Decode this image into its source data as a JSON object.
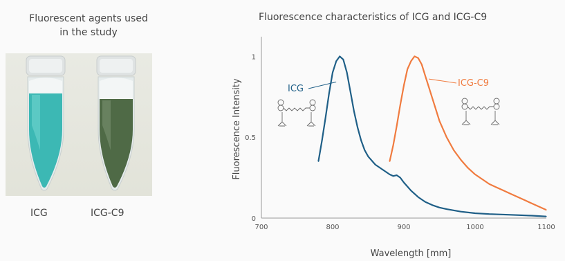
{
  "left_panel": {
    "title_line1": "Fluorescent agents used",
    "title_line2": "in the study",
    "tube_labels": [
      "ICG",
      "ICG-C9"
    ]
  },
  "chart_data": {
    "type": "line",
    "title": "Fluorescence characteristics of ICG and ICG-C9",
    "xlabel": "Wavelength [mm]",
    "ylabel": "Fluorescence Intensity",
    "xlim": [
      700,
      1100
    ],
    "ylim": [
      0,
      1.1
    ],
    "xticks": [
      "700",
      "800",
      "900",
      "1000",
      "1100"
    ],
    "yticks": [
      "0",
      "0.5",
      "1"
    ],
    "grid": false,
    "series": [
      {
        "name": "ICG",
        "color": "#1f5f87",
        "x": [
          780,
          785,
          790,
          795,
          800,
          805,
          810,
          815,
          820,
          825,
          830,
          835,
          840,
          845,
          850,
          860,
          870,
          880,
          885,
          890,
          895,
          900,
          910,
          920,
          930,
          940,
          950,
          960,
          980,
          1000,
          1020,
          1050,
          1080,
          1100
        ],
        "values": [
          0.35,
          0.48,
          0.62,
          0.77,
          0.9,
          0.97,
          1.0,
          0.98,
          0.9,
          0.78,
          0.66,
          0.56,
          0.48,
          0.42,
          0.38,
          0.33,
          0.3,
          0.27,
          0.26,
          0.265,
          0.25,
          0.22,
          0.17,
          0.13,
          0.1,
          0.08,
          0.065,
          0.055,
          0.04,
          0.03,
          0.025,
          0.02,
          0.015,
          0.01
        ]
      },
      {
        "name": "ICG-C9",
        "color": "#f07b3f",
        "x": [
          880,
          885,
          890,
          895,
          900,
          905,
          910,
          915,
          920,
          925,
          930,
          935,
          940,
          945,
          950,
          960,
          970,
          980,
          990,
          1000,
          1010,
          1020,
          1030,
          1040,
          1050,
          1060,
          1070,
          1080,
          1090,
          1100
        ],
        "values": [
          0.35,
          0.45,
          0.57,
          0.7,
          0.82,
          0.92,
          0.97,
          1.0,
          0.99,
          0.95,
          0.88,
          0.81,
          0.74,
          0.67,
          0.6,
          0.5,
          0.42,
          0.36,
          0.31,
          0.27,
          0.24,
          0.21,
          0.19,
          0.17,
          0.15,
          0.13,
          0.11,
          0.09,
          0.07,
          0.05
        ]
      }
    ],
    "annotations": [
      "ICG",
      "ICG-C9"
    ]
  }
}
